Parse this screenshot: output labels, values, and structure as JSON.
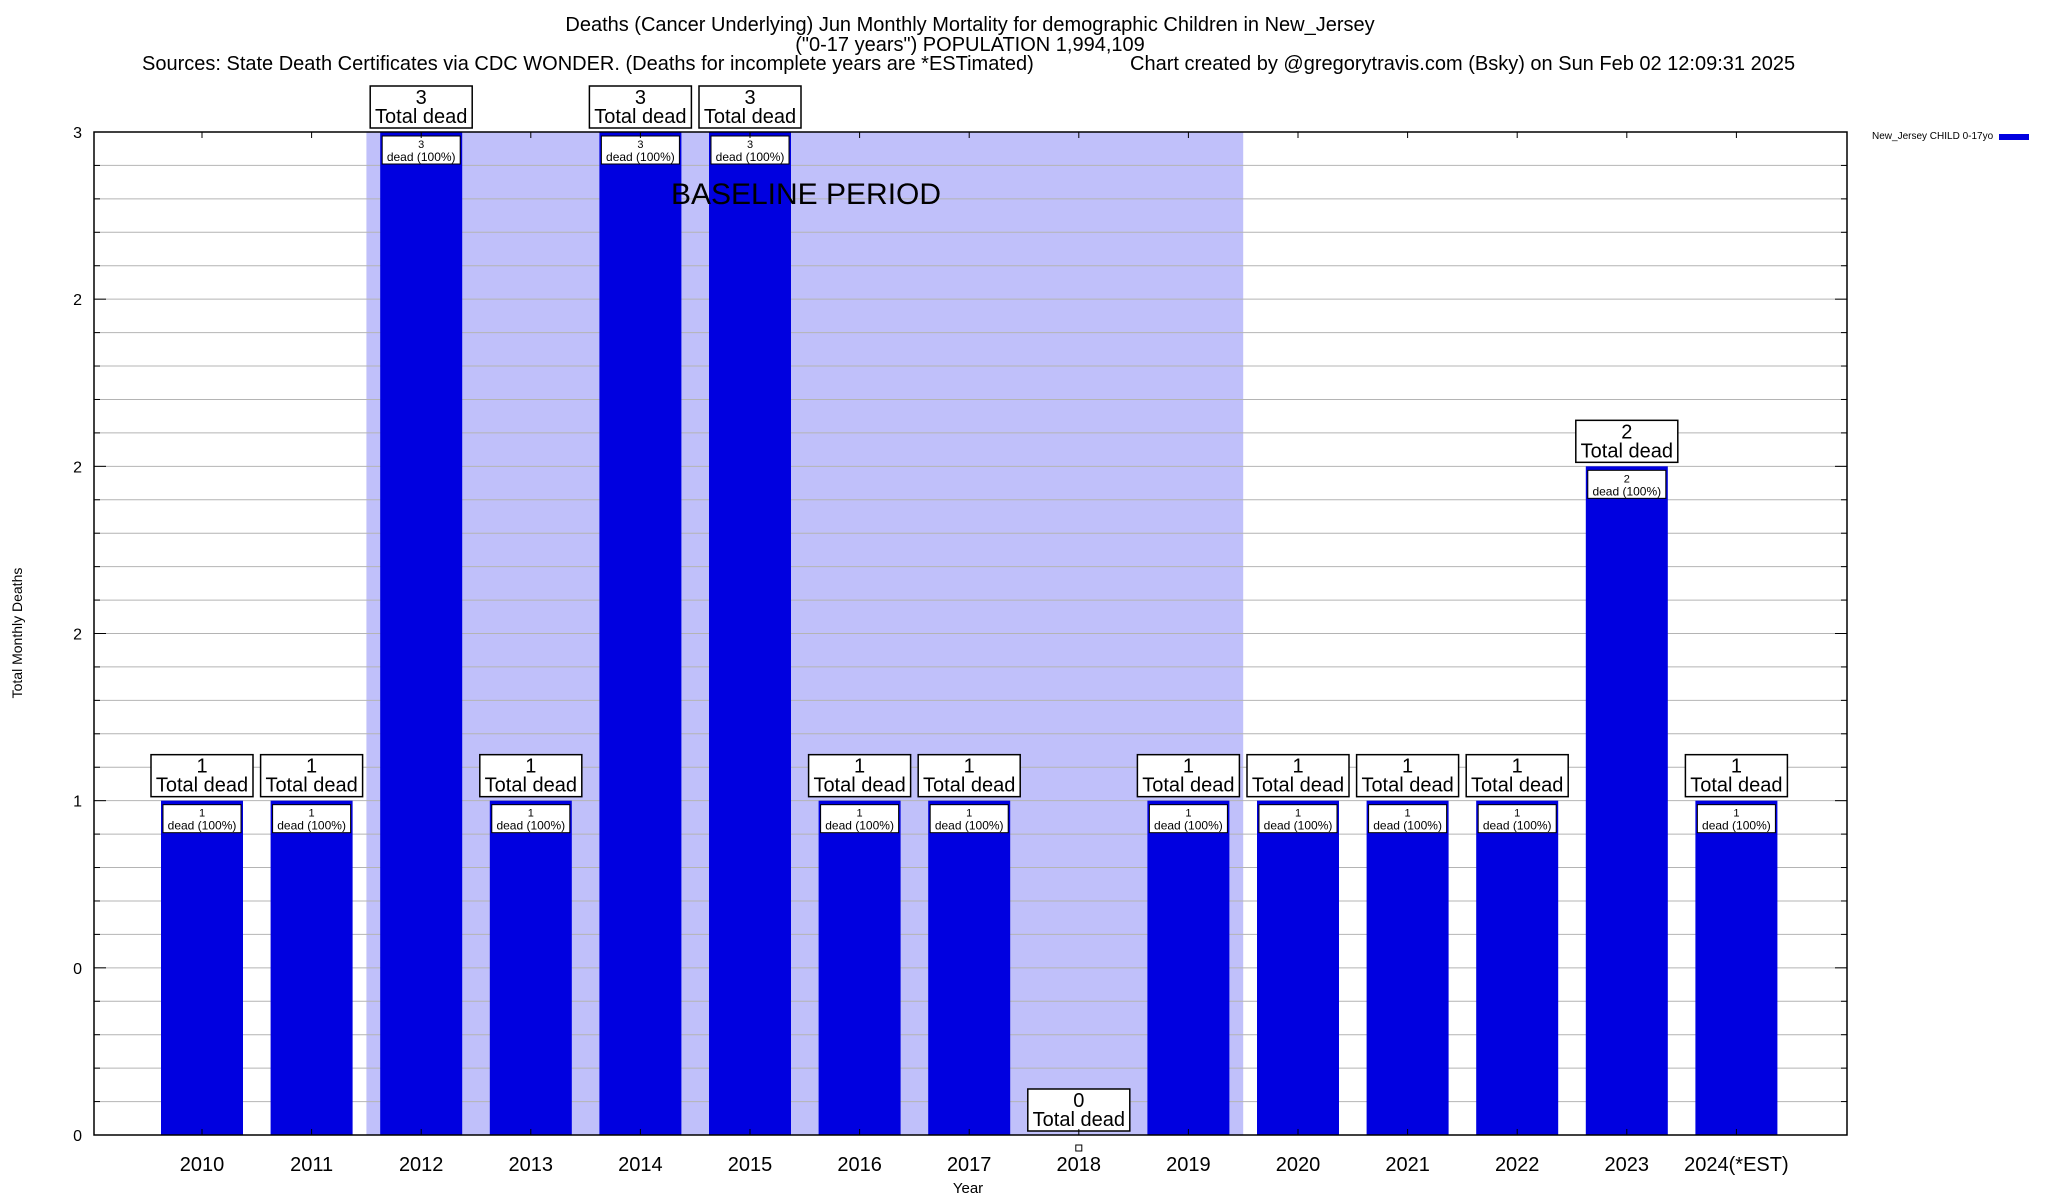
{
  "title": {
    "line1": "Deaths (Cancer Underlying) Jun Monthly Mortality for demographic Children in New_Jersey",
    "line2": "(\"0-17 years\") POPULATION 1,994,109",
    "sources": "Sources: State Death Certificates via CDC WONDER. (Deaths for incomplete years are *ESTimated)",
    "created": "Chart created by @gregorytravis.com (Bsky) on Sun Feb 02 12:09:31 2025"
  },
  "chart_data": {
    "type": "bar",
    "categories": [
      "2010",
      "2011",
      "2012",
      "2013",
      "2014",
      "2015",
      "2016",
      "2017",
      "2018",
      "2019",
      "2020",
      "2021",
      "2022",
      "2023",
      "2024(*EST)"
    ],
    "series": [
      {
        "name": "New_Jersey CHILD 0-17yo",
        "values": [
          1,
          1,
          3,
          1,
          3,
          3,
          1,
          1,
          0,
          1,
          1,
          1,
          1,
          2,
          1
        ]
      }
    ],
    "xlabel": "Year",
    "ylabel": "Total Monthly Deaths",
    "ylim": [
      0,
      3
    ],
    "y_tick_labels": [
      "0",
      "0",
      "1",
      "2",
      "2",
      "2",
      "3"
    ],
    "total_label": "Total dead",
    "inner_label_suffix": "dead (100%)",
    "baseline_label": "BASELINE PERIOD",
    "baseline_range": [
      "2012",
      "2019"
    ],
    "grid": true,
    "legend_position": "top-right",
    "colors": {
      "bar": "#0000e0",
      "baseline": "#c0c0fa",
      "grid": "#b4b4b4"
    }
  }
}
